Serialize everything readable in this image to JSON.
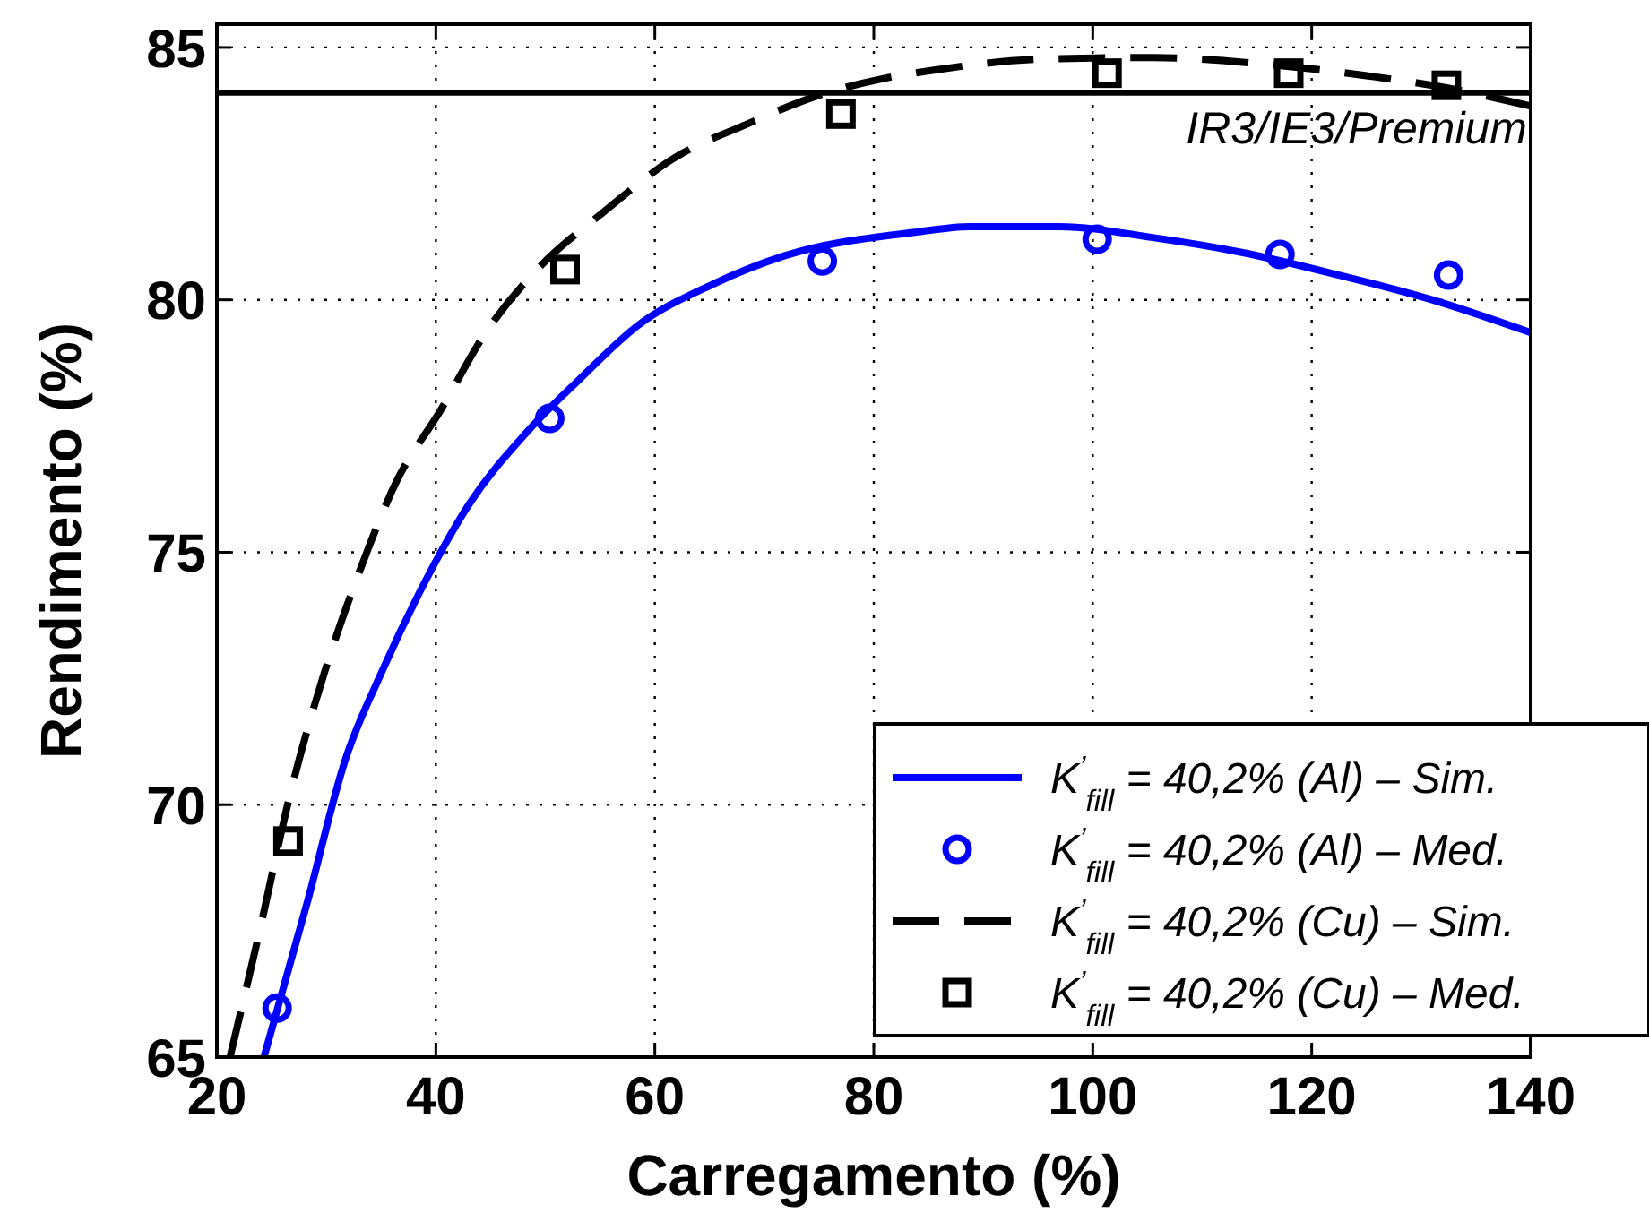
{
  "chart_data": {
    "type": "line",
    "xlabel": "Carregamento (%)",
    "ylabel": "Rendimento (%)",
    "xlim": [
      20,
      140
    ],
    "ylim": [
      65,
      85.46
    ],
    "xticks": [
      20,
      40,
      60,
      80,
      100,
      120,
      140
    ],
    "yticks": [
      65,
      70,
      75,
      80,
      85
    ],
    "grid": true,
    "legend": "bottom right",
    "ref_lines": [
      {
        "axis": "y",
        "value": 84.1,
        "label": "IR3/IE3/Premium",
        "color": "#000000",
        "line_style": "solid"
      }
    ],
    "series": [
      {
        "name": "K$^{’}$$_{fill}$ = 40,2% (Al) – Sim.",
        "color": "#0000ff",
        "line_style": "solid",
        "marker": "none",
        "x": [
          24.3,
          28.3,
          31.7,
          35.0,
          38.5,
          43.0,
          48.4,
          53.0,
          58.5,
          65.2,
          71.8,
          83.8,
          88.8,
          96.9,
          105.6,
          113.6,
          122.3,
          131.0,
          140
        ],
        "values": [
          65,
          68.1,
          70.87,
          72.6,
          74.2,
          75.94,
          77.4,
          78.4,
          79.5,
          80.3,
          80.87,
          81.34,
          81.45,
          81.45,
          81.23,
          80.94,
          80.5,
          80.0,
          79.35
        ]
      },
      {
        "name": "K$^{’}$$_{fill}$ = 40,2% (Al) – Med.",
        "type": "scatter",
        "color": "#0000ff",
        "marker": "circle",
        "x": [
          25.5,
          50.4,
          75.3,
          100.4,
          117.1,
          132.5
        ],
        "values": [
          65.97,
          77.65,
          80.77,
          81.2,
          80.9,
          80.49
        ]
      },
      {
        "name": "K$^{’}$$_{fill}$ = 40,2% (Cu) – Sim.",
        "color": "#000000",
        "line_style": "dashed",
        "marker": "none",
        "x": [
          21.2,
          23.8,
          26.8,
          29.8,
          33.0,
          36.4,
          40.4,
          44.4,
          49.7,
          55.1,
          61.7,
          68.4,
          75.1,
          80.8,
          85.5,
          95.5,
          105.6,
          115.7,
          125.7,
          132.3,
          140
        ],
        "values": [
          65,
          67.4,
          70.3,
          72.6,
          74.6,
          76.4,
          77.8,
          79.3,
          80.7,
          81.7,
          82.8,
          83.48,
          84.06,
          84.38,
          84.55,
          84.77,
          84.8,
          84.67,
          84.42,
          84.2,
          83.84
        ]
      },
      {
        "name": "K$^{’}$$_{fill}$ = 40,2% (Cu) – Med.",
        "type": "scatter",
        "color": "#000000",
        "marker": "square",
        "x": [
          26.5,
          51.8,
          77.0,
          101.3,
          117.9,
          132.3
        ],
        "values": [
          69.28,
          80.6,
          83.68,
          84.49,
          84.49,
          84.25
        ]
      }
    ]
  }
}
